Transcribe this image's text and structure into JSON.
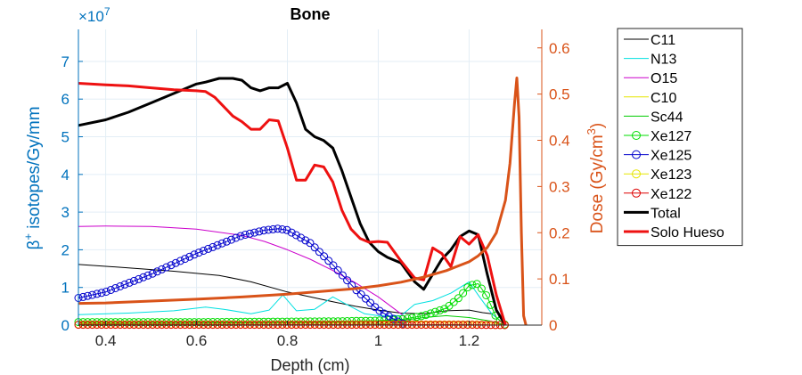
{
  "chart_data": {
    "type": "line",
    "title": "Bone",
    "xlabel": "Depth (cm)",
    "ylabel_left": "β⁺ isotopes/Gy/mm",
    "ylabel_left_parts": [
      "β",
      "+",
      " isotopes/Gy/mm"
    ],
    "ylabel_right": "Dose (Gy/cm³)",
    "ylabel_right_parts": [
      "Dose (Gy/cm",
      "3",
      ")"
    ],
    "left_exponent": "×10",
    "left_exponent_power": "7",
    "xlim": [
      0.34,
      1.36
    ],
    "ylim_left": [
      0,
      7.85
    ],
    "ylim_right": [
      0,
      0.64
    ],
    "x_ticks": [
      "0.4",
      "0.6",
      "0.8",
      "1",
      "1.2"
    ],
    "y_ticks_left": [
      "0",
      "1",
      "2",
      "3",
      "4",
      "5",
      "6",
      "7"
    ],
    "y_ticks_right": [
      "0",
      "0.1",
      "0.2",
      "0.3",
      "0.4",
      "0.5",
      "0.6"
    ],
    "grid": true,
    "legend_position": "outside-right",
    "series": [
      {
        "name": "C11",
        "color": "#000000",
        "width": 1,
        "marker": "none",
        "axis": "left",
        "x": [
          0.34,
          0.45,
          0.55,
          0.65,
          0.72,
          0.8,
          0.9,
          0.95,
          1.0,
          1.05,
          1.1,
          1.15,
          1.2,
          1.23,
          1.25,
          1.28
        ],
        "y": [
          1.61,
          1.52,
          1.43,
          1.32,
          1.15,
          0.88,
          0.62,
          0.5,
          0.4,
          0.32,
          0.3,
          0.38,
          0.4,
          0.33,
          0.3,
          0.0
        ]
      },
      {
        "name": "N13",
        "color": "#00e0e0",
        "width": 1,
        "marker": "none",
        "axis": "left",
        "x": [
          0.34,
          0.45,
          0.55,
          0.62,
          0.66,
          0.72,
          0.76,
          0.79,
          0.82,
          0.86,
          0.9,
          0.93,
          0.97,
          1.0,
          1.05,
          1.08,
          1.12,
          1.16,
          1.2,
          1.22,
          1.25,
          1.28
        ],
        "y": [
          0.28,
          0.32,
          0.38,
          0.48,
          0.42,
          0.3,
          0.4,
          0.8,
          0.38,
          0.42,
          0.75,
          0.55,
          0.3,
          0.25,
          0.25,
          0.55,
          0.65,
          0.85,
          1.15,
          0.8,
          0.3,
          0.0
        ]
      },
      {
        "name": "O15",
        "color": "#cc00cc",
        "width": 1,
        "marker": "none",
        "axis": "left",
        "x": [
          0.34,
          0.4,
          0.5,
          0.6,
          0.7,
          0.75,
          0.8,
          0.85,
          0.9,
          0.95,
          1.0,
          1.05,
          1.08
        ],
        "y": [
          2.62,
          2.63,
          2.62,
          2.55,
          2.38,
          2.22,
          2.0,
          1.75,
          1.45,
          1.12,
          0.75,
          0.3,
          0.0
        ]
      },
      {
        "name": "C10",
        "color": "#e6e600",
        "width": 1,
        "marker": "none",
        "axis": "left",
        "x": [
          0.34,
          0.6,
          0.9,
          1.1,
          1.25,
          1.28
        ],
        "y": [
          0.05,
          0.05,
          0.06,
          0.08,
          0.06,
          0.0
        ]
      },
      {
        "name": "Sc44",
        "color": "#00cc00",
        "width": 1,
        "marker": "none",
        "axis": "left",
        "x": [
          0.34,
          0.6,
          0.9,
          1.05,
          1.1,
          1.15,
          1.2,
          1.25,
          1.28
        ],
        "y": [
          0.03,
          0.05,
          0.08,
          0.12,
          0.2,
          0.25,
          0.2,
          0.1,
          0.0
        ]
      },
      {
        "name": "Xe127",
        "color": "#00dd00",
        "width": 1,
        "marker": "circle",
        "axis": "left",
        "x": [
          0.34,
          0.6,
          0.9,
          1.0,
          1.05,
          1.1,
          1.15,
          1.18,
          1.2,
          1.22,
          1.24,
          1.26,
          1.28
        ],
        "y": [
          0.08,
          0.08,
          0.1,
          0.12,
          0.15,
          0.25,
          0.45,
          0.75,
          1.05,
          1.1,
          0.75,
          0.2,
          0.0
        ]
      },
      {
        "name": "Xe125",
        "color": "#0000cc",
        "width": 1,
        "marker": "circle",
        "axis": "left",
        "x": [
          0.34,
          0.4,
          0.5,
          0.6,
          0.7,
          0.75,
          0.78,
          0.8,
          0.85,
          0.9,
          0.95,
          1.0,
          1.05,
          1.07
        ],
        "y": [
          0.72,
          0.88,
          1.35,
          1.9,
          2.38,
          2.52,
          2.56,
          2.52,
          2.18,
          1.6,
          0.95,
          0.4,
          0.05,
          0.0
        ]
      },
      {
        "name": "Xe123",
        "color": "#e6e600",
        "width": 1,
        "marker": "circle",
        "axis": "left",
        "x": [
          0.34,
          0.6,
          0.9,
          1.2,
          1.28
        ],
        "y": [
          0.02,
          0.02,
          0.02,
          0.02,
          0.0
        ]
      },
      {
        "name": "Xe122",
        "color": "#dd0000",
        "width": 1,
        "marker": "circle",
        "axis": "left",
        "x": [
          0.34,
          0.6,
          0.9,
          1.2,
          1.28
        ],
        "y": [
          0.01,
          0.01,
          0.01,
          0.01,
          0.0
        ]
      },
      {
        "name": "Total",
        "color": "#000000",
        "width": 3,
        "marker": "none",
        "axis": "left",
        "x": [
          0.34,
          0.4,
          0.45,
          0.5,
          0.55,
          0.6,
          0.62,
          0.65,
          0.68,
          0.7,
          0.72,
          0.74,
          0.76,
          0.78,
          0.8,
          0.82,
          0.84,
          0.86,
          0.88,
          0.9,
          0.92,
          0.94,
          0.96,
          0.98,
          1.0,
          1.02,
          1.05,
          1.08,
          1.1,
          1.12,
          1.14,
          1.16,
          1.18,
          1.2,
          1.22,
          1.24,
          1.26,
          1.28
        ],
        "y": [
          5.3,
          5.45,
          5.65,
          5.9,
          6.15,
          6.4,
          6.45,
          6.55,
          6.55,
          6.5,
          6.3,
          6.22,
          6.3,
          6.3,
          6.42,
          5.9,
          5.2,
          5.0,
          4.9,
          4.7,
          4.1,
          3.4,
          2.7,
          2.2,
          1.95,
          1.8,
          1.65,
          1.15,
          0.95,
          1.35,
          1.75,
          2.0,
          2.35,
          2.5,
          2.4,
          1.35,
          0.4,
          0.0
        ]
      },
      {
        "name": "Solo Hueso",
        "color": "#ee1111",
        "width": 3,
        "marker": "none",
        "axis": "left",
        "x": [
          0.34,
          0.4,
          0.45,
          0.5,
          0.55,
          0.6,
          0.62,
          0.64,
          0.66,
          0.68,
          0.7,
          0.72,
          0.74,
          0.76,
          0.78,
          0.8,
          0.82,
          0.84,
          0.86,
          0.88,
          0.9,
          0.92,
          0.94,
          0.96,
          0.98,
          1.0,
          1.02,
          1.05,
          1.08,
          1.1,
          1.12,
          1.14,
          1.16,
          1.18,
          1.2,
          1.22,
          1.24,
          1.26,
          1.28
        ],
        "y": [
          6.42,
          6.38,
          6.35,
          6.3,
          6.25,
          6.22,
          6.2,
          6.05,
          5.8,
          5.55,
          5.4,
          5.2,
          5.2,
          5.45,
          5.42,
          4.7,
          3.85,
          3.85,
          4.25,
          4.2,
          3.8,
          3.05,
          2.55,
          2.3,
          2.2,
          2.22,
          2.2,
          1.7,
          1.25,
          1.2,
          2.05,
          1.9,
          1.55,
          2.35,
          2.15,
          2.4,
          1.85,
          0.8,
          0.0
        ]
      },
      {
        "name": "Dose",
        "legend": false,
        "color": "#d95319",
        "width": 3,
        "marker": "none",
        "axis": "right",
        "x": [
          0.34,
          0.4,
          0.5,
          0.6,
          0.7,
          0.8,
          0.9,
          0.95,
          1.0,
          1.05,
          1.1,
          1.15,
          1.2,
          1.22,
          1.24,
          1.26,
          1.28,
          1.29,
          1.3,
          1.305,
          1.31,
          1.315,
          1.32,
          1.325
        ],
        "y": [
          0.047,
          0.048,
          0.052,
          0.056,
          0.061,
          0.067,
          0.075,
          0.079,
          0.085,
          0.093,
          0.104,
          0.118,
          0.137,
          0.15,
          0.168,
          0.2,
          0.27,
          0.35,
          0.48,
          0.535,
          0.45,
          0.2,
          0.02,
          0.0
        ]
      }
    ]
  }
}
